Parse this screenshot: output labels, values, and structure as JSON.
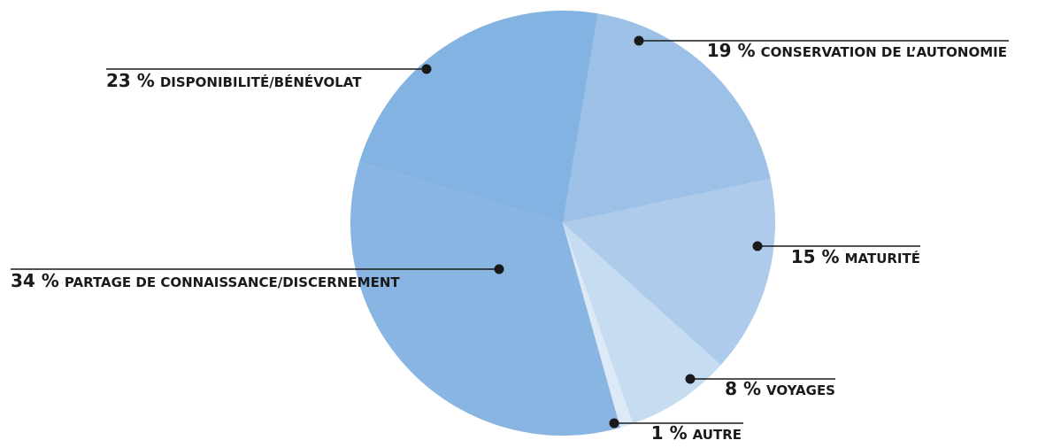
{
  "chart_data": {
    "type": "pie",
    "categories": [
      "CONSERVATION DE L’AUTONOMIE",
      "MATURITÉ",
      "VOYAGES",
      "AUTRE",
      "PARTAGE DE CONNAISSANCE/DISCERNEMENT",
      "DISPONIBILITÉ/BÉNÉVOLAT"
    ],
    "values": [
      19,
      15,
      8,
      1,
      34,
      23
    ],
    "value_labels": [
      "19 %",
      "15 %",
      "8 %",
      "1 %",
      "34 %",
      "23 %"
    ],
    "colors": [
      "#9dc0e6",
      "#aecbeb",
      "#c6dcf1",
      "#dde9f6",
      "#89b5e2",
      "#82b3e2"
    ]
  }
}
